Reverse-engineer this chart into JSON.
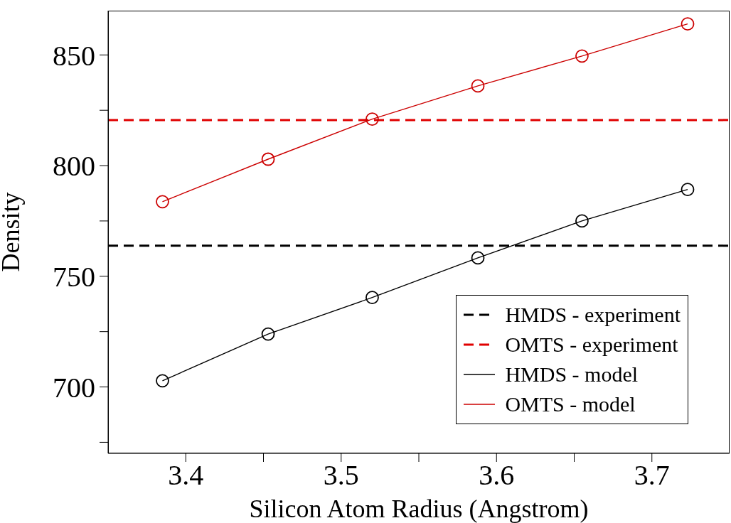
{
  "chart_data": {
    "type": "line",
    "xlabel": "Silicon Atom Radius (Angstrom)",
    "ylabel": "Density",
    "xlim": [
      3.35,
      3.75
    ],
    "xticks": [
      3.4,
      {
        "value": 3.45,
        "label": null
      },
      3.5,
      {
        "value": 3.55,
        "label": null
      },
      3.6,
      {
        "value": 3.65,
        "label": null
      },
      3.7
    ],
    "ylim": [
      670,
      870
    ],
    "yticks": [
      {
        "value": 675,
        "label": null
      },
      700,
      {
        "value": 725,
        "label": null
      },
      750,
      {
        "value": 775,
        "label": null
      },
      800,
      {
        "value": 825,
        "label": null
      },
      850
    ],
    "grid": false,
    "legend": "bottom right",
    "series": [
      {
        "name": "HMDS - experiment",
        "color": "#000000",
        "x": [
          3.35,
          3.75
        ],
        "values": [
          763.8,
          763.8
        ],
        "line_style": "dashed",
        "marker": "none"
      },
      {
        "name": "OMTS - experiment",
        "color": "#e00000",
        "x": [
          3.35,
          3.75
        ],
        "values": [
          820.6,
          820.6
        ],
        "line_style": "dashed",
        "marker": "none"
      },
      {
        "name": "HMDS - model",
        "color": "#000000",
        "x": [
          3.385,
          3.453,
          3.52,
          3.588,
          3.655,
          3.723
        ],
        "values": [
          702.8,
          723.9,
          740.4,
          758.3,
          775,
          789.2
        ],
        "line_style": "solid",
        "marker": "circle"
      },
      {
        "name": "OMTS - model",
        "color": "#cc0000",
        "x": [
          3.385,
          3.453,
          3.52,
          3.588,
          3.655,
          3.723
        ],
        "values": [
          783.7,
          802.9,
          821,
          836,
          849.5,
          864
        ],
        "line_style": "solid",
        "marker": "circle"
      }
    ]
  }
}
